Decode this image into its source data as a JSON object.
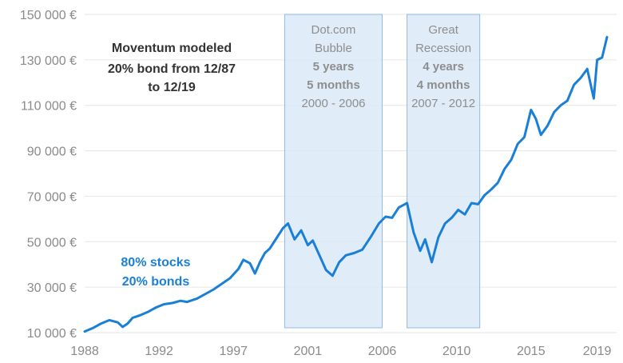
{
  "chart_data": {
    "type": "line",
    "title": "",
    "xlabel": "",
    "ylabel": "",
    "xlim": [
      1988,
      2019.6
    ],
    "ylim": [
      10000,
      150000
    ],
    "y_ticks": [
      {
        "value": 10000,
        "label": "10 000 €"
      },
      {
        "value": 30000,
        "label": "30 000 €"
      },
      {
        "value": 50000,
        "label": "50 000 €"
      },
      {
        "value": 70000,
        "label": "70 000 €"
      },
      {
        "value": 90000,
        "label": "90 000 €"
      },
      {
        "value": 110000,
        "label": "110 000 €"
      },
      {
        "value": 130000,
        "label": "130 000 €"
      },
      {
        "value": 150000,
        "label": "150 000 €"
      }
    ],
    "x_ticks": [
      {
        "value": 1988,
        "label": "1988"
      },
      {
        "value": 1992.5,
        "label": "1992"
      },
      {
        "value": 1997,
        "label": "1997"
      },
      {
        "value": 2001.5,
        "label": "2001"
      },
      {
        "value": 2006,
        "label": "2006"
      },
      {
        "value": 2010.5,
        "label": "2010"
      },
      {
        "value": 2015,
        "label": "2015"
      },
      {
        "value": 2019,
        "label": "2019"
      }
    ],
    "bands": [
      {
        "start": 2000.1,
        "end": 2006.0,
        "lines": [
          "Dot.com",
          "Bubble"
        ],
        "bold_lines": [
          "5 years",
          "5 months"
        ],
        "range": "2000 - 2006"
      },
      {
        "start": 2007.5,
        "end": 2011.9,
        "lines": [
          "Great",
          "Recession"
        ],
        "bold_lines": [
          "4 years",
          "4 months"
        ],
        "range": "2007 - 2012"
      }
    ],
    "annotations": {
      "model_lines": [
        "Moventum modeled",
        "20% bond from 12/87",
        "to 12/19"
      ],
      "series_label_lines": [
        "80% stocks",
        "20% bonds"
      ]
    },
    "series": [
      {
        "name": "80% stocks 20% bonds",
        "color": "#1a7fd6",
        "x": [
          1988,
          1988.5,
          1989,
          1989.5,
          1990,
          1990.3,
          1990.6,
          1990.9,
          1991.3,
          1991.8,
          1992.3,
          1992.8,
          1993.3,
          1993.8,
          1994.2,
          1994.8,
          1995.3,
          1995.8,
          1996.3,
          1996.8,
          1997.3,
          1997.6,
          1998.0,
          1998.3,
          1998.6,
          1998.9,
          1999.2,
          1999.6,
          2000.0,
          2000.3,
          2000.7,
          2001.1,
          2001.5,
          2001.8,
          2002.2,
          2002.6,
          2003.0,
          2003.4,
          2003.8,
          2004.3,
          2004.8,
          2005.3,
          2005.8,
          2006.2,
          2006.6,
          2007.0,
          2007.5,
          2007.9,
          2008.3,
          2008.6,
          2009.0,
          2009.4,
          2009.8,
          2010.2,
          2010.6,
          2011.0,
          2011.4,
          2011.8,
          2012.2,
          2012.6,
          2013.0,
          2013.4,
          2013.8,
          2014.2,
          2014.6,
          2015.0,
          2015.3,
          2015.6,
          2016.0,
          2016.4,
          2016.8,
          2017.2,
          2017.6,
          2018.0,
          2018.4,
          2018.8,
          2019.0,
          2019.3,
          2019.6
        ],
        "values": [
          10500,
          12000,
          14000,
          15500,
          14500,
          12500,
          14000,
          16500,
          17500,
          19000,
          21000,
          22500,
          23000,
          24000,
          23500,
          25000,
          27000,
          29000,
          31500,
          34000,
          38000,
          42000,
          40500,
          36000,
          41000,
          45000,
          47000,
          51500,
          56000,
          58000,
          51000,
          55000,
          48500,
          50500,
          44000,
          37500,
          35000,
          41000,
          44000,
          45000,
          46500,
          52000,
          58000,
          61000,
          60500,
          65000,
          67000,
          54000,
          46000,
          51000,
          41000,
          52000,
          58000,
          60500,
          64000,
          62000,
          67000,
          66500,
          70500,
          73000,
          76000,
          82000,
          86000,
          93000,
          96000,
          108000,
          104000,
          97000,
          101000,
          107000,
          110000,
          112000,
          119000,
          122000,
          126000,
          113000,
          130000,
          131000,
          140000
        ]
      }
    ]
  }
}
